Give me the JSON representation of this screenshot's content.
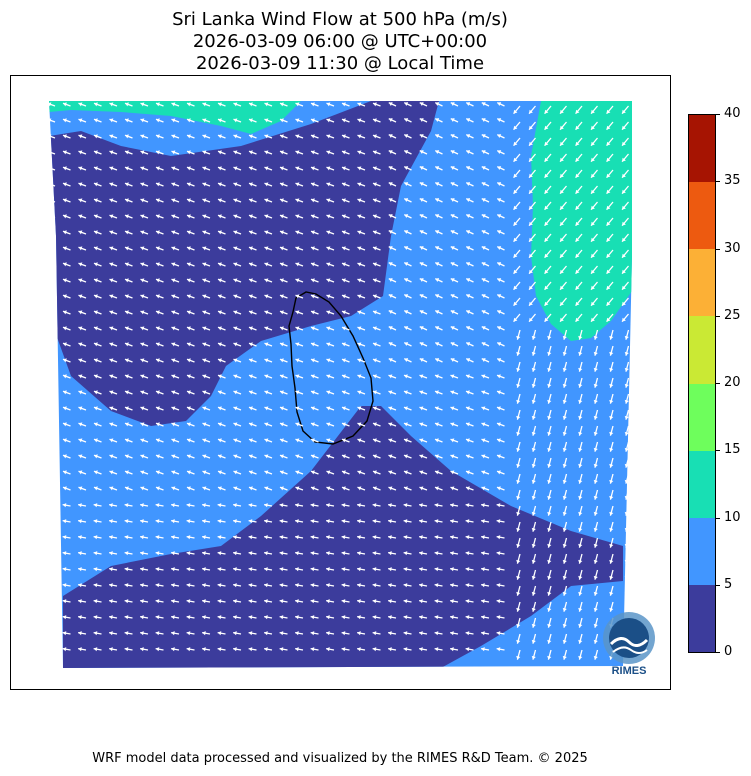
{
  "title": {
    "line1": "Sri Lanka Wind Flow at 500 hPa (m/s)",
    "line2": "2026-03-09 06:00 @ UTC+00:00",
    "line3": "2026-03-09 11:30 @ Local Time"
  },
  "colorbar": {
    "ticks": [
      "0",
      "5",
      "10",
      "15",
      "20",
      "25",
      "30",
      "35",
      "40"
    ],
    "colors": [
      "#3c3c9c",
      "#4196ff",
      "#18dfb4",
      "#6efe5c",
      "#cae934",
      "#fcb036",
      "#ed5a10",
      "#a61402"
    ]
  },
  "logo": {
    "text": "RIMES",
    "colors": {
      "ring": "#5b95c8",
      "text": "#1b4f87"
    }
  },
  "footer": "WRF model data processed and visualized by the RIMES R&D Team. © 2025",
  "map_colors": {
    "land_outline": "#000000",
    "arrow": "#ffffff"
  }
}
